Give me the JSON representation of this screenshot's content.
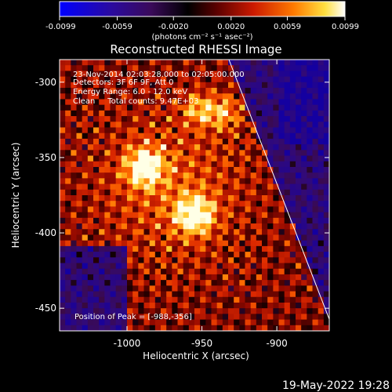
{
  "chart_data": {
    "type": "heatmap",
    "title": "Reconstructed RHESSI Image",
    "xlabel": "Heliocentric X (arcsec)",
    "ylabel": "Heliocentric Y (arcsec)",
    "xlim": [
      -1045,
      -865
    ],
    "ylim": [
      -465,
      -285
    ],
    "x_ticks": [
      "-1000",
      "-950",
      "-900"
    ],
    "x_tick_values": [
      -1000,
      -950,
      -900
    ],
    "y_ticks": [
      "-300",
      "-350",
      "-400",
      "-450"
    ],
    "y_tick_values": [
      -300,
      -350,
      -400,
      -450
    ],
    "colorbar": {
      "min": -0.0099,
      "max": 0.0099,
      "ticks": [
        "-0.0099",
        "-0.0059",
        "-0.0020",
        "0.0020",
        "0.0059",
        "0.0099"
      ],
      "tick_values": [
        -0.0099,
        -0.0059,
        -0.002,
        0.002,
        0.0059,
        0.0099
      ],
      "unit_label": "(photons cm⁻² s⁻¹ asec⁻²)"
    },
    "annotations": [
      "23-Nov-2014 02:03:28.000 to 02:05:00.000",
      "Detectors: 3F 6F 9F, Att 0",
      "Energy Range: 6.0 - 12.0 keV",
      "Clean     Total counts: 9.47E+03"
    ],
    "peak_label": "Position of Peak = [-988,-356]",
    "peak_position": [
      -988,
      -356
    ],
    "bright_sources": [
      {
        "x": -988,
        "y": -356
      },
      {
        "x": -955,
        "y": -388
      },
      {
        "x": -952,
        "y": -318
      },
      {
        "x": -935,
        "y": -320
      }
    ],
    "limb_line": {
      "x": [
        -932,
        -862
      ],
      "y": [
        -285,
        -465
      ]
    },
    "colors": {
      "background": "#000000",
      "foreground": "#ffffff"
    }
  },
  "footer": {
    "timestamp": "19-May-2022 19:28"
  }
}
